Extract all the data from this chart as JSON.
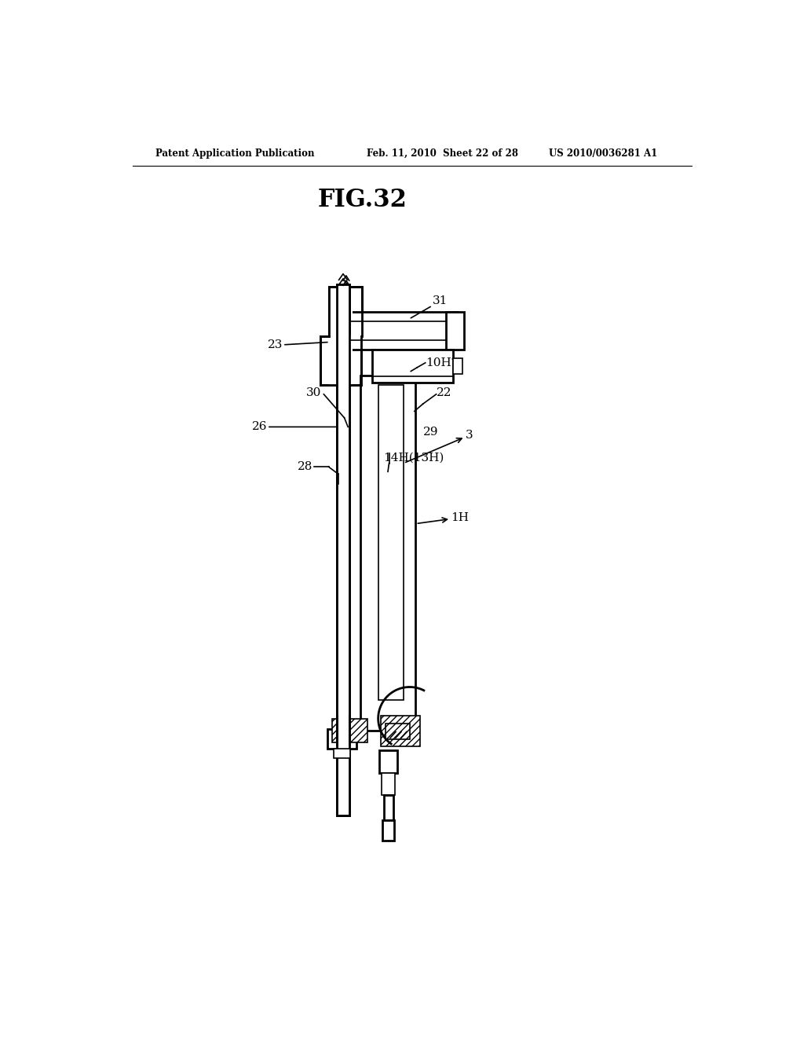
{
  "title": "FIG.32",
  "header_left": "Patent Application Publication",
  "header_mid": "Feb. 11, 2010  Sheet 22 of 28",
  "header_right": "US 2010/0036281 A1",
  "bg_color": "#ffffff",
  "line_color": "#000000",
  "label_fontsize": 11,
  "title_fontsize": 22,
  "header_fontsize": 8.5
}
